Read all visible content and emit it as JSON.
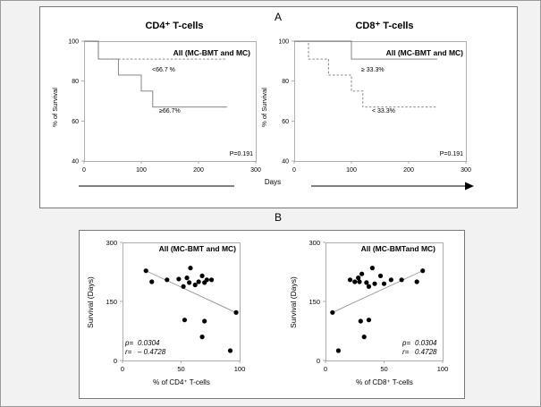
{
  "panel_a": {
    "label": "A",
    "xlabel": "Days",
    "ylabel": "% of Survival",
    "x_ticks": [
      "0",
      "100",
      "200",
      "300"
    ],
    "y_ticks": [
      "100",
      "80",
      "60",
      "40"
    ],
    "xlim": [
      0,
      300
    ],
    "ylim": [
      40,
      100
    ]
  },
  "panel_b": {
    "label": "B",
    "ylabel": "Survival (Days)",
    "x_ticks": [
      "0",
      "50",
      "100"
    ],
    "y_ticks": [
      "300",
      "150",
      "0"
    ],
    "xlim": [
      0,
      100
    ],
    "ylim": [
      0,
      300
    ]
  },
  "chart_data": [
    {
      "type": "line",
      "subtype": "kaplan-meier",
      "title": "CD4⁺ T-cells",
      "box_label": "All (MC-BMT and MC)",
      "xlabel": "Days",
      "ylabel": "% of Survival",
      "xlim": [
        0,
        300
      ],
      "ylim": [
        40,
        100
      ],
      "pvalue": "P=0.191",
      "series": [
        {
          "name": "<66.7 %",
          "style": "dashed",
          "x": [
            0,
            25,
            250
          ],
          "y": [
            100,
            91,
            91
          ]
        },
        {
          "name": "≥66.7%",
          "style": "solid",
          "x": [
            0,
            25,
            60,
            100,
            120,
            250
          ],
          "y": [
            100,
            91,
            83,
            75,
            67,
            67
          ]
        }
      ]
    },
    {
      "type": "line",
      "subtype": "kaplan-meier",
      "title": "CD8⁺ T-cells",
      "box_label": "All (MC-BMT and MC)",
      "xlabel": "Days",
      "ylabel": "% of Survival",
      "xlim": [
        0,
        300
      ],
      "ylim": [
        40,
        100
      ],
      "pvalue": "P=0.191",
      "series": [
        {
          "name": "≥ 33.3%",
          "style": "solid",
          "x": [
            0,
            100,
            250
          ],
          "y": [
            100,
            91,
            91
          ]
        },
        {
          "name": "< 33.3%",
          "style": "dashed",
          "x": [
            0,
            25,
            60,
            100,
            120,
            250
          ],
          "y": [
            100,
            91,
            83,
            75,
            67,
            67
          ]
        }
      ]
    },
    {
      "type": "scatter",
      "box_label": "All (MC-BMT and MC)",
      "xlabel": "% of CD4⁺ T-cells",
      "ylabel": "Survival (Days)",
      "xlim": [
        0,
        100
      ],
      "ylim": [
        0,
        300
      ],
      "p_label": "p=",
      "p_value": "0.0304",
      "r_label": "r=",
      "r_value": "– 0.4728",
      "points": [
        [
          20,
          228
        ],
        [
          25,
          200
        ],
        [
          38,
          205
        ],
        [
          48,
          207
        ],
        [
          52,
          188
        ],
        [
          55,
          210
        ],
        [
          57,
          198
        ],
        [
          58,
          235
        ],
        [
          62,
          192
        ],
        [
          65,
          200
        ],
        [
          68,
          215
        ],
        [
          70,
          198
        ],
        [
          72,
          205
        ],
        [
          76,
          205
        ],
        [
          53,
          103
        ],
        [
          70,
          100
        ],
        [
          68,
          60
        ],
        [
          92,
          25
        ],
        [
          97,
          122
        ]
      ],
      "trend": {
        "x": [
          20,
          98
        ],
        "y": [
          228,
          120
        ]
      }
    },
    {
      "type": "scatter",
      "box_label": "All (MC-BMTand MC)",
      "xlabel": "% of CD8⁺ T-cells",
      "ylabel": "Survival (Days)",
      "xlim": [
        0,
        100
      ],
      "ylim": [
        0,
        300
      ],
      "p_label": "p=",
      "p_value": "0.0304",
      "r_label": "r=",
      "r_value": "0.4728",
      "points": [
        [
          6,
          122
        ],
        [
          11,
          25
        ],
        [
          21,
          205
        ],
        [
          25,
          200
        ],
        [
          28,
          210
        ],
        [
          29,
          200
        ],
        [
          31,
          220
        ],
        [
          35,
          198
        ],
        [
          37,
          188
        ],
        [
          40,
          235
        ],
        [
          42,
          195
        ],
        [
          47,
          215
        ],
        [
          50,
          195
        ],
        [
          56,
          205
        ],
        [
          65,
          205
        ],
        [
          78,
          200
        ],
        [
          83,
          228
        ],
        [
          30,
          100
        ],
        [
          33,
          60
        ],
        [
          37,
          103
        ]
      ],
      "trend": {
        "x": [
          6,
          83
        ],
        "y": [
          122,
          228
        ]
      }
    }
  ]
}
